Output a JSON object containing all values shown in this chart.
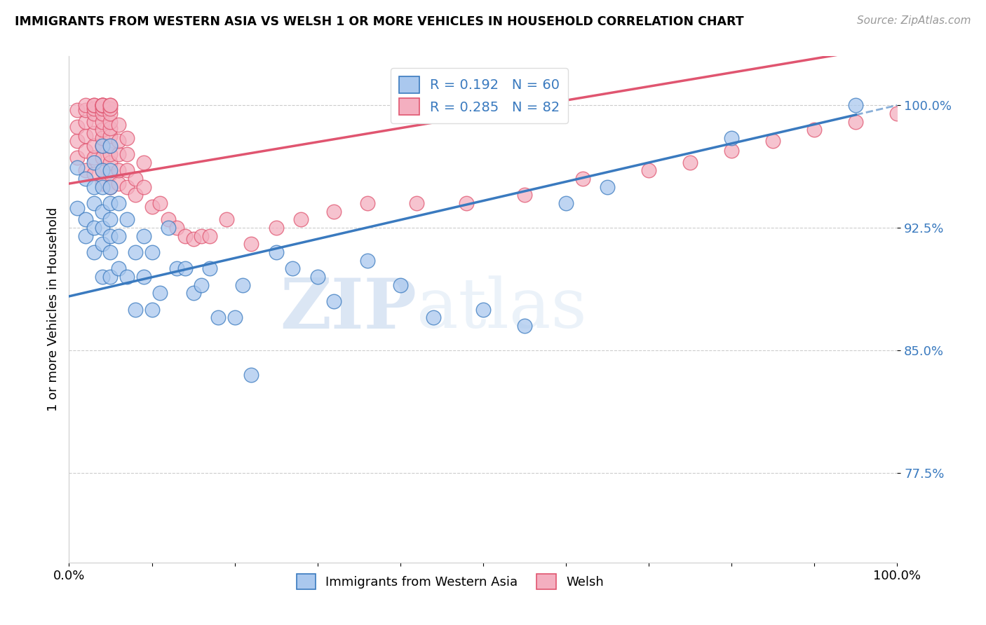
{
  "title": "IMMIGRANTS FROM WESTERN ASIA VS WELSH 1 OR MORE VEHICLES IN HOUSEHOLD CORRELATION CHART",
  "source": "Source: ZipAtlas.com",
  "ylabel": "1 or more Vehicles in Household",
  "xlim": [
    0.0,
    1.0
  ],
  "ylim": [
    0.72,
    1.03
  ],
  "yticks": [
    0.775,
    0.85,
    0.925,
    1.0
  ],
  "ytick_labels": [
    "77.5%",
    "85.0%",
    "92.5%",
    "100.0%"
  ],
  "xticks": [
    0.0,
    0.1,
    0.2,
    0.3,
    0.4,
    0.5,
    0.6,
    0.7,
    0.8,
    0.9,
    1.0
  ],
  "xtick_labels": [
    "0.0%",
    "",
    "",
    "",
    "",
    "",
    "",
    "",
    "",
    "",
    "100.0%"
  ],
  "blue_R": 0.192,
  "blue_N": 60,
  "pink_R": 0.285,
  "pink_N": 82,
  "blue_color": "#aac8ee",
  "pink_color": "#f4afc0",
  "blue_line_color": "#3a7abf",
  "pink_line_color": "#e05570",
  "watermark_zip": "ZIP",
  "watermark_atlas": "atlas",
  "legend_labels": [
    "Immigrants from Western Asia",
    "Welsh"
  ],
  "blue_intercept": 0.883,
  "blue_slope": 0.117,
  "pink_intercept": 0.952,
  "pink_slope": 0.085,
  "blue_x": [
    0.01,
    0.01,
    0.02,
    0.02,
    0.02,
    0.03,
    0.03,
    0.03,
    0.03,
    0.03,
    0.04,
    0.04,
    0.04,
    0.04,
    0.04,
    0.04,
    0.04,
    0.05,
    0.05,
    0.05,
    0.05,
    0.05,
    0.05,
    0.05,
    0.05,
    0.06,
    0.06,
    0.06,
    0.07,
    0.07,
    0.08,
    0.08,
    0.09,
    0.09,
    0.1,
    0.1,
    0.11,
    0.12,
    0.13,
    0.14,
    0.15,
    0.16,
    0.17,
    0.18,
    0.2,
    0.21,
    0.22,
    0.25,
    0.27,
    0.3,
    0.32,
    0.36,
    0.4,
    0.44,
    0.5,
    0.55,
    0.6,
    0.65,
    0.8,
    0.95
  ],
  "blue_y": [
    0.937,
    0.962,
    0.92,
    0.93,
    0.955,
    0.91,
    0.925,
    0.94,
    0.95,
    0.965,
    0.895,
    0.915,
    0.925,
    0.935,
    0.95,
    0.96,
    0.975,
    0.895,
    0.91,
    0.92,
    0.93,
    0.94,
    0.95,
    0.96,
    0.975,
    0.9,
    0.92,
    0.94,
    0.895,
    0.93,
    0.875,
    0.91,
    0.895,
    0.92,
    0.875,
    0.91,
    0.885,
    0.925,
    0.9,
    0.9,
    0.885,
    0.89,
    0.9,
    0.87,
    0.87,
    0.89,
    0.835,
    0.91,
    0.9,
    0.895,
    0.88,
    0.905,
    0.89,
    0.87,
    0.875,
    0.865,
    0.94,
    0.95,
    0.98,
    1.0
  ],
  "pink_x": [
    0.01,
    0.01,
    0.01,
    0.01,
    0.02,
    0.02,
    0.02,
    0.02,
    0.02,
    0.02,
    0.03,
    0.03,
    0.03,
    0.03,
    0.03,
    0.03,
    0.03,
    0.03,
    0.03,
    0.04,
    0.04,
    0.04,
    0.04,
    0.04,
    0.04,
    0.04,
    0.04,
    0.04,
    0.04,
    0.04,
    0.04,
    0.04,
    0.05,
    0.05,
    0.05,
    0.05,
    0.05,
    0.05,
    0.05,
    0.05,
    0.05,
    0.05,
    0.05,
    0.05,
    0.06,
    0.06,
    0.06,
    0.06,
    0.06,
    0.07,
    0.07,
    0.07,
    0.07,
    0.08,
    0.08,
    0.09,
    0.09,
    0.1,
    0.11,
    0.12,
    0.13,
    0.14,
    0.15,
    0.16,
    0.17,
    0.19,
    0.22,
    0.25,
    0.28,
    0.32,
    0.36,
    0.42,
    0.48,
    0.55,
    0.62,
    0.7,
    0.75,
    0.8,
    0.85,
    0.9,
    0.95,
    1.0
  ],
  "pink_y": [
    0.968,
    0.978,
    0.987,
    0.997,
    0.96,
    0.972,
    0.981,
    0.99,
    0.997,
    1.0,
    0.958,
    0.968,
    0.975,
    0.983,
    0.99,
    0.995,
    0.998,
    1.0,
    1.0,
    0.952,
    0.96,
    0.968,
    0.975,
    0.98,
    0.985,
    0.99,
    0.995,
    0.998,
    1.0,
    1.0,
    1.0,
    1.0,
    0.95,
    0.958,
    0.965,
    0.97,
    0.975,
    0.981,
    0.986,
    0.99,
    0.995,
    0.998,
    1.0,
    1.0,
    0.952,
    0.96,
    0.97,
    0.978,
    0.988,
    0.95,
    0.96,
    0.97,
    0.98,
    0.945,
    0.955,
    0.95,
    0.965,
    0.938,
    0.94,
    0.93,
    0.925,
    0.92,
    0.918,
    0.92,
    0.92,
    0.93,
    0.915,
    0.925,
    0.93,
    0.935,
    0.94,
    0.94,
    0.94,
    0.945,
    0.955,
    0.96,
    0.965,
    0.972,
    0.978,
    0.985,
    0.99,
    0.995
  ]
}
